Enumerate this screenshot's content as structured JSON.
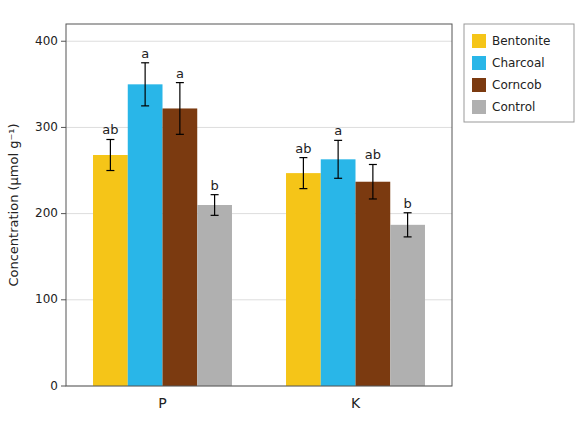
{
  "chart_data": {
    "type": "bar",
    "categories": [
      "P",
      "K"
    ],
    "series": [
      {
        "name": "Bentonite",
        "color": "#F5C518",
        "values": [
          268,
          247
        ],
        "errors": [
          18,
          18
        ],
        "letters": [
          "ab",
          "ab"
        ]
      },
      {
        "name": "Charcoal",
        "color": "#29B6E8",
        "values": [
          350,
          263
        ],
        "errors": [
          25,
          22
        ],
        "letters": [
          "a",
          "a"
        ]
      },
      {
        "name": "Corncob",
        "color": "#7B3A10",
        "values": [
          322,
          237
        ],
        "errors": [
          30,
          20
        ],
        "letters": [
          "a",
          "ab"
        ]
      },
      {
        "name": "Control",
        "color": "#B0B0B0",
        "values": [
          210,
          187
        ],
        "errors": [
          12,
          14
        ],
        "letters": [
          "b",
          "b"
        ]
      }
    ],
    "ylabel": "Concentration (μmol g⁻¹)",
    "ylim": [
      0,
      420
    ],
    "yticks": [
      0,
      100,
      200,
      300,
      400
    ],
    "grid": true,
    "legend": "right"
  }
}
